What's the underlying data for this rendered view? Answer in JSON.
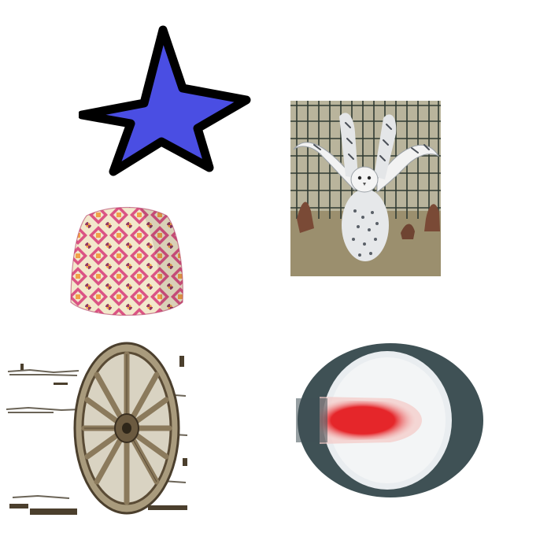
{
  "canvas": {
    "background": "#ffffff"
  },
  "images": [
    {
      "icon": "star-icon",
      "fill_color": "#4a4ee3",
      "outline_color": "#000000"
    },
    {
      "icon": "snowy-owl-photo",
      "colors": {
        "fence": "#2f3a32",
        "ground": "#9b8f6e",
        "feathers": "#f2f2f2"
      }
    },
    {
      "icon": "patterned-pouf-photo",
      "colors": {
        "pink": "#d8467a",
        "orange": "#f09a3c",
        "cream": "#f1e6c8"
      }
    },
    {
      "icon": "wagon-wheel-photo",
      "colors": {
        "wood": "#8b7a5c",
        "dark": "#4b3f2d"
      }
    },
    {
      "icon": "red-target-icon",
      "colors": {
        "ring": "#3f5155",
        "center": "#e9edf0",
        "red": "#e5262a"
      }
    }
  ]
}
